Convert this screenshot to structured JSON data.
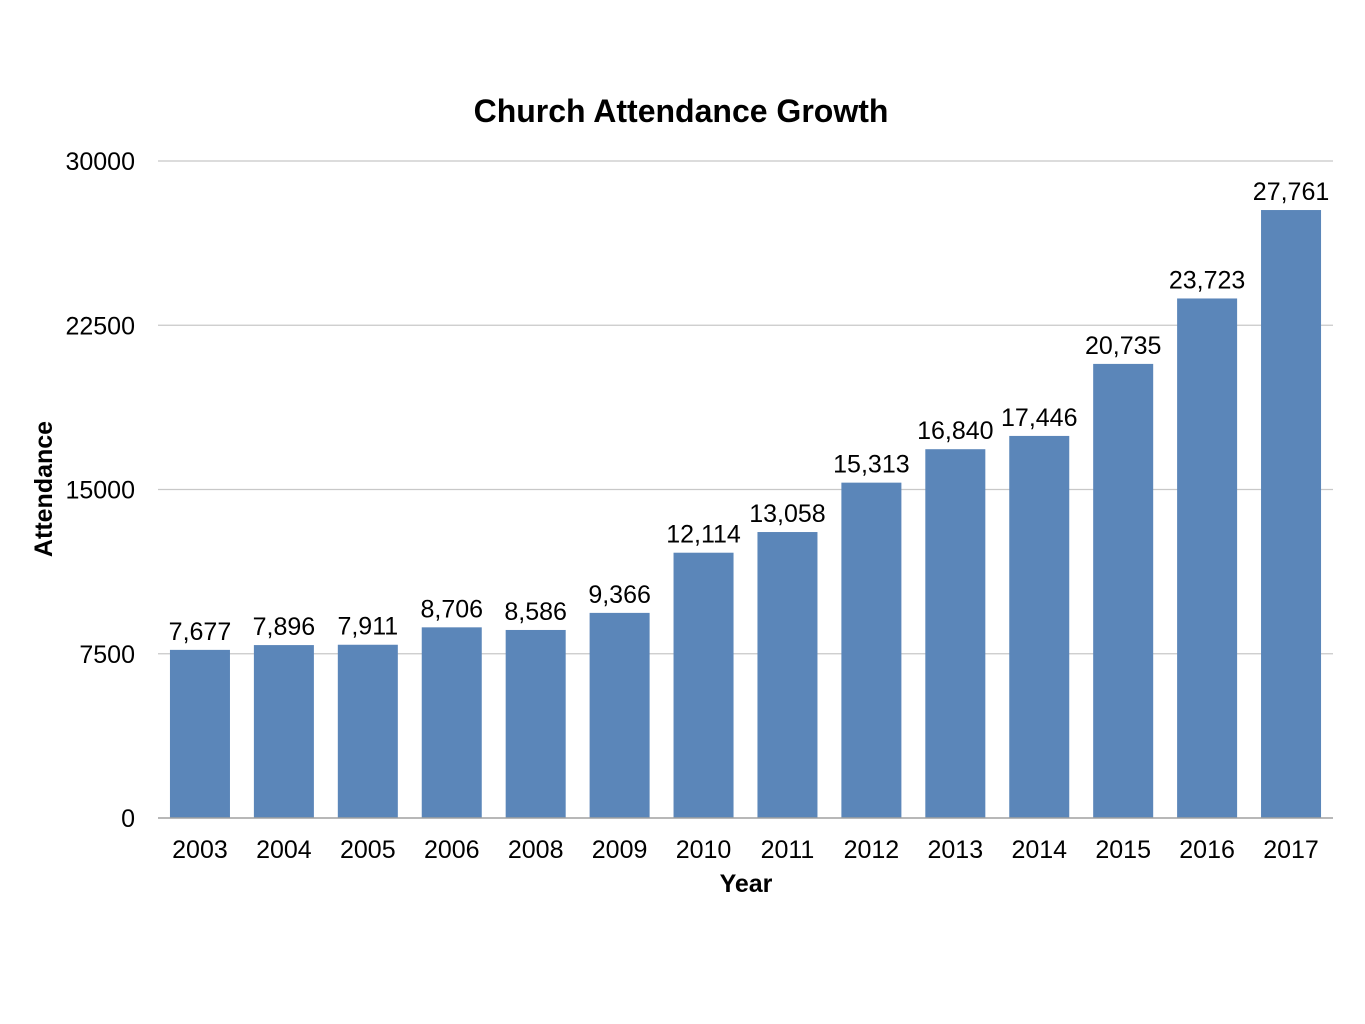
{
  "chart_data": {
    "type": "bar",
    "title": "Church Attendance Growth",
    "xlabel": "Year",
    "ylabel": "Attendance",
    "categories": [
      "2003",
      "2004",
      "2005",
      "2006",
      "2008",
      "2009",
      "2010",
      "2011",
      "2012",
      "2013",
      "2014",
      "2015",
      "2016",
      "2017"
    ],
    "values": [
      7677,
      7896,
      7911,
      8706,
      8586,
      9366,
      12114,
      13058,
      15313,
      16840,
      17446,
      20735,
      23723,
      27761
    ],
    "value_labels": [
      "7,677",
      "7,896",
      "7,911",
      "8,706",
      "8,586",
      "9,366",
      "12,114",
      "13,058",
      "15,313",
      "16,840",
      "17,446",
      "20,735",
      "23,723",
      "27,761"
    ],
    "ylim": [
      0,
      30000
    ],
    "yticks": [
      0,
      7500,
      15000,
      22500,
      30000
    ],
    "ytick_labels": [
      "0",
      "7500",
      "15000",
      "22500",
      "30000"
    ],
    "grid": true,
    "legend": "none",
    "bar_color": "#5b86b9",
    "grid_color": "#c8c8c8"
  }
}
